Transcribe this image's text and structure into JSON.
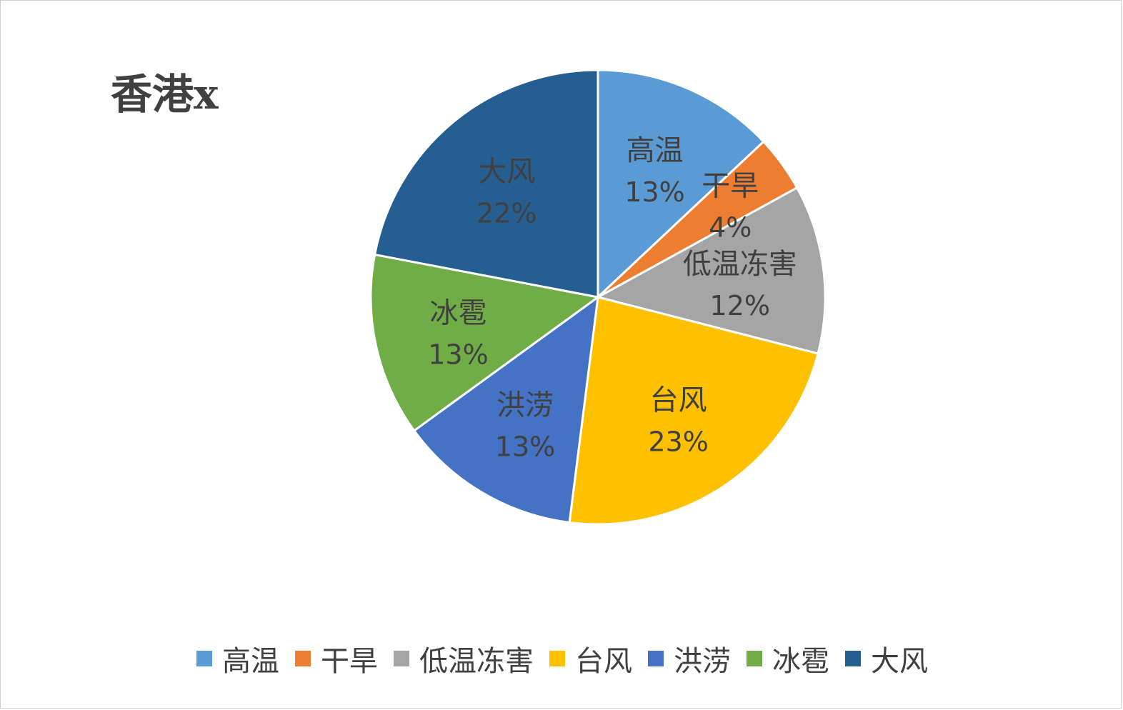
{
  "chart_data": {
    "type": "pie",
    "title": "香港x",
    "categories": [
      "高温",
      "干旱",
      "低温冻害",
      "台风",
      "洪涝",
      "冰雹",
      "大风"
    ],
    "values": [
      13,
      4,
      12,
      23,
      13,
      13,
      22
    ],
    "labels": [
      "13%",
      "4%",
      "12%",
      "23%",
      "13%",
      "13%",
      "22%"
    ],
    "colors": [
      "#5B9BD5",
      "#ED7D31",
      "#A5A5A5",
      "#FFC000",
      "#4472C4",
      "#70AD47",
      "#255E91"
    ],
    "legend_position": "bottom"
  }
}
